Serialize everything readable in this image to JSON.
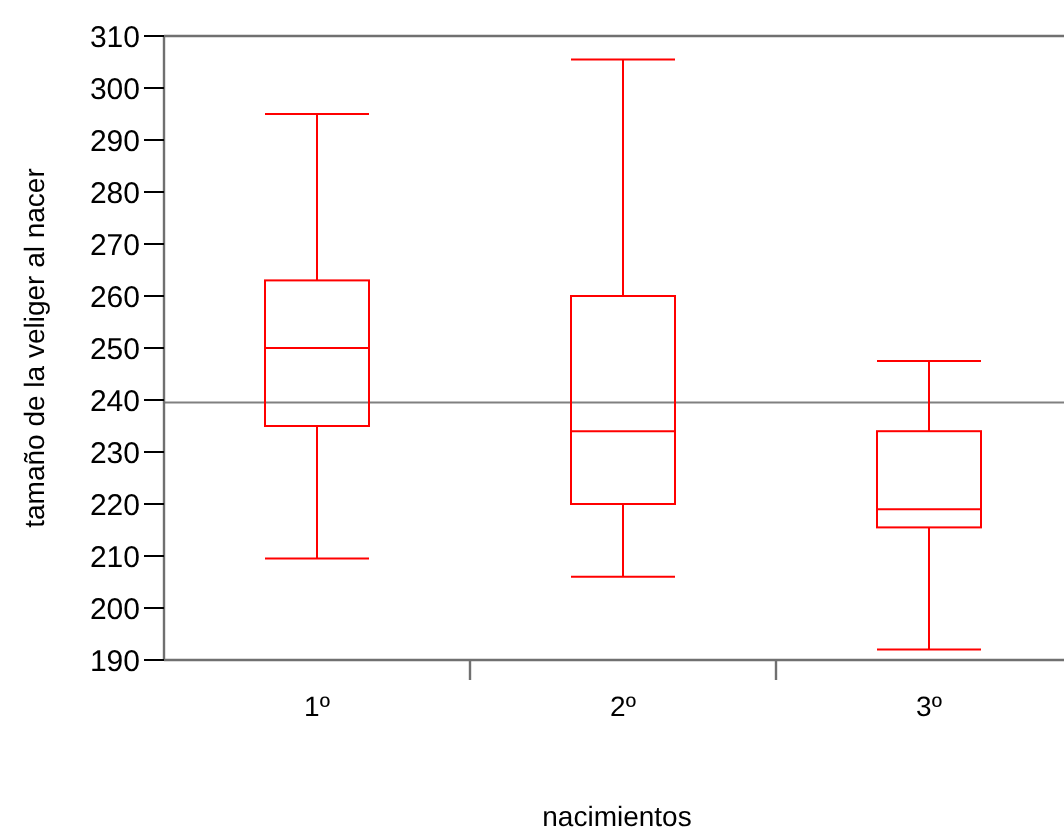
{
  "chart_data": {
    "type": "box",
    "xlabel": "nacimientos",
    "ylabel": "tamaño de la veliger al nacer",
    "categories": [
      "1º",
      "2º",
      "3º"
    ],
    "boxes": [
      {
        "low": 209.5,
        "q1": 235,
        "median": 250,
        "q3": 263,
        "high": 295
      },
      {
        "low": 206,
        "q1": 220,
        "median": 234,
        "q3": 260,
        "high": 305.5
      },
      {
        "low": 192,
        "q1": 215.5,
        "median": 219,
        "q3": 234,
        "high": 247.5
      }
    ],
    "color": "#ff0000",
    "ylim": [
      190,
      310
    ],
    "yticks": [
      190,
      200,
      210,
      220,
      230,
      240,
      250,
      260,
      270,
      280,
      290,
      300,
      310
    ],
    "ref_lines": [
      {
        "axis": "y",
        "value": 239.5,
        "color": "#808080"
      }
    ],
    "grid": false
  }
}
